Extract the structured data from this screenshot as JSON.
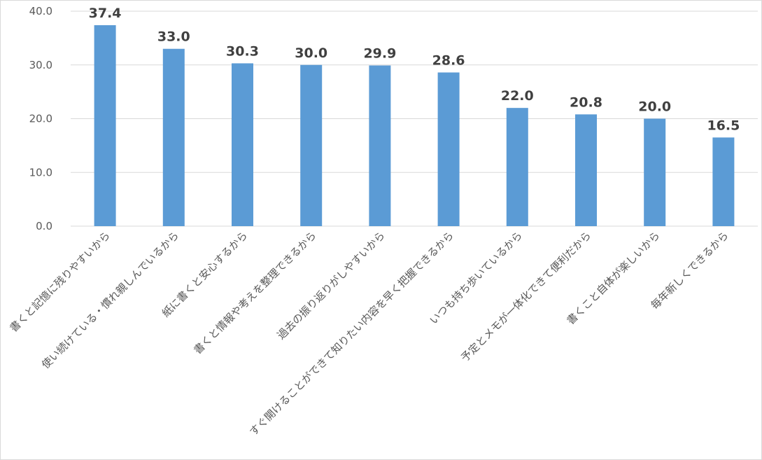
{
  "chart_data": {
    "type": "bar",
    "categories": [
      "書くと記憶に残りやすいから",
      "使い続けている・慣れ親しんでいるから",
      "紙に書くと安心するから",
      "書くと情報や考えを整理できるから",
      "過去の振り返りがしやすいから",
      "すぐ開けることができて知りたい内容を早く把握できるから",
      "いつも持ち歩いているから",
      "予定とメモが一体化できて便利だから",
      "書くこと自体が楽しいから",
      "毎年新しくできるから"
    ],
    "values": [
      37.4,
      33.0,
      30.3,
      30.0,
      29.9,
      28.6,
      22.0,
      20.8,
      20.0,
      16.5
    ],
    "data_labels": [
      "37.4",
      "33.0",
      "30.3",
      "30.0",
      "29.9",
      "28.6",
      "22.0",
      "20.8",
      "20.0",
      "16.5"
    ],
    "y_ticks": [
      "0.0",
      "10.0",
      "20.0",
      "30.0",
      "40.0"
    ],
    "ylim": [
      0,
      40
    ],
    "grid": true,
    "legend": "none",
    "bar_color": "#5b9bd5",
    "grid_color": "#d9d9d9"
  }
}
